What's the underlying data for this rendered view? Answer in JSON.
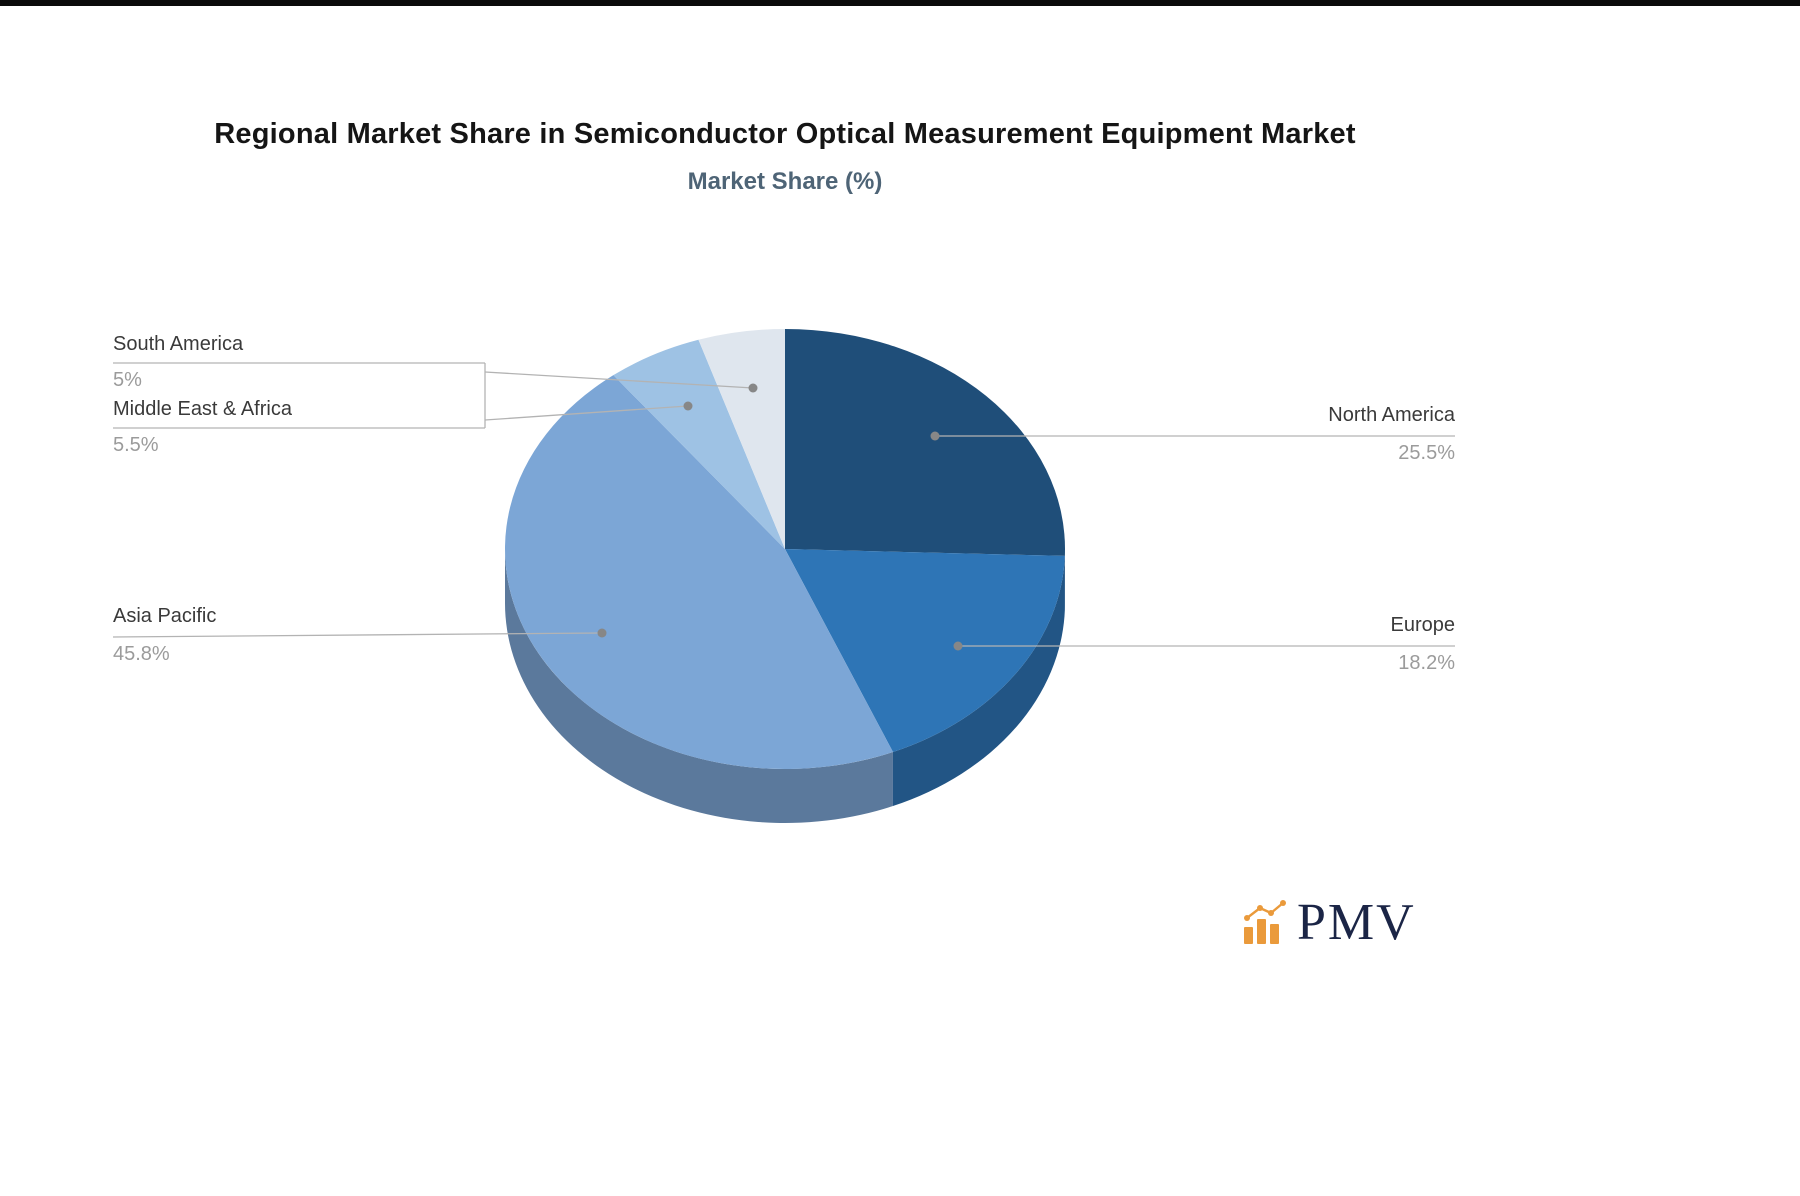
{
  "chart_data": {
    "type": "pie",
    "style": "3d",
    "title": "Regional Market Share in Semiconductor Optical Measurement Equipment Market",
    "subtitle": "Market Share (%)",
    "categories": [
      "North America",
      "Europe",
      "Asia Pacific",
      "Middle East & Africa",
      "South America"
    ],
    "values": [
      25.5,
      18.2,
      45.8,
      5.5,
      5
    ],
    "labels": [
      "25.5%",
      "18.2%",
      "45.8%",
      "5.5%",
      "5%"
    ],
    "colors": [
      "#1f4e79",
      "#2e75b6",
      "#7ca6d6",
      "#9ec2e4",
      "#dfe6ee"
    ],
    "start_angle_deg": 0,
    "direction": "clockwise",
    "legend": "none",
    "units": "%"
  },
  "logo": {
    "text": "PMV",
    "text_color": "#1b2546",
    "icon": "bar-chart-icon",
    "icon_color": "#ea9a3b"
  }
}
